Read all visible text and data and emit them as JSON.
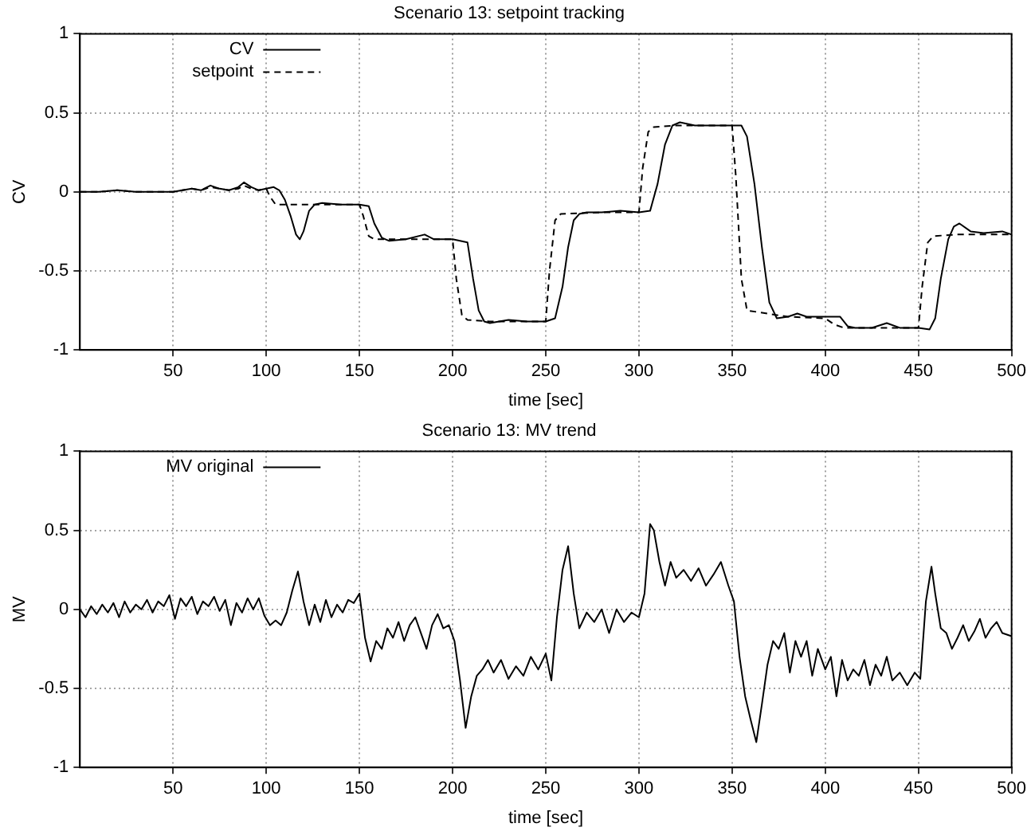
{
  "chart_data": [
    {
      "type": "line",
      "title": "Scenario 13: setpoint tracking",
      "xlabel": "time [sec]",
      "ylabel": "CV",
      "xlim": [
        0,
        500
      ],
      "xticks": [
        50,
        100,
        150,
        200,
        250,
        300,
        350,
        400,
        450,
        500
      ],
      "ylim": [
        -1,
        1
      ],
      "yticks": [
        -1,
        -0.5,
        0,
        0.5,
        1
      ],
      "grid": true,
      "legend": "top left",
      "series": [
        {
          "name": "CV",
          "color": "#000000",
          "line_style": "solid",
          "x": [
            0,
            10,
            20,
            30,
            40,
            50,
            55,
            60,
            65,
            70,
            75,
            80,
            85,
            88,
            92,
            96,
            100,
            104,
            107,
            110,
            113,
            116,
            118,
            120,
            123,
            126,
            130,
            140,
            150,
            155,
            158,
            162,
            166,
            175,
            185,
            190,
            200,
            208,
            211,
            214,
            217,
            220,
            230,
            240,
            250,
            255,
            259,
            262,
            265,
            268,
            272,
            280,
            290,
            300,
            306,
            310,
            314,
            318,
            322,
            330,
            340,
            350,
            355,
            358,
            362,
            366,
            370,
            374,
            380,
            385,
            390,
            400,
            408,
            412,
            416,
            425,
            433,
            440,
            450,
            456,
            459,
            462,
            466,
            469,
            472,
            478,
            485,
            495,
            500
          ],
          "values": [
            0,
            0,
            0.01,
            0,
            0,
            0,
            0.01,
            0.02,
            0.01,
            0.04,
            0.02,
            0.01,
            0.03,
            0.06,
            0.03,
            0.01,
            0.02,
            0.03,
            0.01,
            -0.05,
            -0.15,
            -0.27,
            -0.3,
            -0.25,
            -0.12,
            -0.08,
            -0.07,
            -0.08,
            -0.08,
            -0.09,
            -0.2,
            -0.29,
            -0.31,
            -0.3,
            -0.27,
            -0.3,
            -0.3,
            -0.32,
            -0.55,
            -0.75,
            -0.82,
            -0.83,
            -0.81,
            -0.82,
            -0.82,
            -0.8,
            -0.6,
            -0.35,
            -0.18,
            -0.14,
            -0.13,
            -0.13,
            -0.12,
            -0.13,
            -0.12,
            0.05,
            0.3,
            0.42,
            0.44,
            0.42,
            0.42,
            0.42,
            0.42,
            0.35,
            0.05,
            -0.35,
            -0.7,
            -0.8,
            -0.79,
            -0.77,
            -0.79,
            -0.79,
            -0.79,
            -0.85,
            -0.86,
            -0.86,
            -0.83,
            -0.86,
            -0.86,
            -0.87,
            -0.8,
            -0.55,
            -0.3,
            -0.22,
            -0.2,
            -0.25,
            -0.26,
            -0.25,
            -0.27
          ]
        },
        {
          "name": "setpoint",
          "color": "#000000",
          "line_style": "dashed",
          "x": [
            0,
            10,
            20,
            30,
            40,
            50,
            55,
            60,
            65,
            70,
            75,
            80,
            85,
            88,
            92,
            96,
            100,
            102,
            105,
            110,
            120,
            130,
            150,
            152,
            155,
            158,
            170,
            200,
            202,
            205,
            208,
            220,
            250,
            252,
            255,
            258,
            280,
            300,
            302,
            305,
            308,
            320,
            350,
            352,
            355,
            358,
            380,
            400,
            405,
            410,
            420,
            450,
            452,
            455,
            458,
            470,
            500
          ],
          "values": [
            0,
            0,
            0.01,
            0,
            0,
            0,
            0.01,
            0.02,
            0.01,
            0.03,
            0.02,
            0.01,
            0.02,
            0.04,
            0.02,
            0.01,
            0.02,
            -0.03,
            -0.08,
            -0.08,
            -0.08,
            -0.08,
            -0.08,
            -0.15,
            -0.28,
            -0.3,
            -0.3,
            -0.3,
            -0.55,
            -0.78,
            -0.81,
            -0.82,
            -0.82,
            -0.5,
            -0.18,
            -0.14,
            -0.13,
            -0.13,
            0.15,
            0.38,
            0.41,
            0.42,
            0.42,
            0.1,
            -0.55,
            -0.75,
            -0.79,
            -0.8,
            -0.84,
            -0.86,
            -0.86,
            -0.86,
            -0.6,
            -0.32,
            -0.28,
            -0.27,
            -0.27
          ]
        }
      ]
    },
    {
      "type": "line",
      "title": "Scenario 13: MV trend",
      "xlabel": "time [sec]",
      "ylabel": "MV",
      "xlim": [
        0,
        500
      ],
      "xticks": [
        50,
        100,
        150,
        200,
        250,
        300,
        350,
        400,
        450,
        500
      ],
      "ylim": [
        -1,
        1
      ],
      "yticks": [
        -1,
        -0.5,
        0,
        0.5,
        1
      ],
      "grid": true,
      "legend": "top left",
      "series": [
        {
          "name": "MV original",
          "color": "#000000",
          "line_style": "solid",
          "x": [
            0,
            3,
            6,
            9,
            12,
            15,
            18,
            21,
            24,
            27,
            30,
            33,
            36,
            39,
            42,
            45,
            48,
            51,
            54,
            57,
            60,
            63,
            66,
            69,
            72,
            75,
            78,
            81,
            84,
            87,
            90,
            93,
            96,
            99,
            102,
            105,
            108,
            111,
            114,
            117,
            120,
            123,
            126,
            129,
            132,
            135,
            138,
            141,
            144,
            147,
            150,
            153,
            156,
            159,
            162,
            165,
            168,
            171,
            174,
            177,
            180,
            183,
            186,
            189,
            192,
            195,
            198,
            201,
            204,
            207,
            210,
            213,
            216,
            219,
            222,
            226,
            230,
            234,
            238,
            242,
            246,
            250,
            253,
            256,
            259,
            262,
            265,
            268,
            272,
            276,
            280,
            284,
            288,
            292,
            296,
            300,
            303,
            306,
            308,
            311,
            314,
            317,
            320,
            324,
            328,
            332,
            336,
            340,
            344,
            348,
            351,
            354,
            357,
            360,
            363,
            366,
            369,
            372,
            375,
            378,
            381,
            384,
            387,
            390,
            393,
            396,
            400,
            403,
            406,
            409,
            412,
            415,
            418,
            421,
            424,
            427,
            430,
            433,
            436,
            440,
            444,
            448,
            451,
            454,
            457,
            459,
            462,
            465,
            468,
            471,
            474,
            477,
            480,
            483,
            486,
            489,
            492,
            495,
            500
          ],
          "values": [
            0,
            -0.05,
            0.02,
            -0.03,
            0.03,
            -0.02,
            0.04,
            -0.05,
            0.05,
            -0.02,
            0.03,
            0.0,
            0.06,
            -0.02,
            0.05,
            0.02,
            0.09,
            -0.06,
            0.07,
            0.02,
            0.08,
            -0.03,
            0.05,
            0.02,
            0.08,
            -0.01,
            0.06,
            -0.1,
            0.04,
            -0.02,
            0.07,
            0.0,
            0.07,
            -0.04,
            -0.1,
            -0.07,
            -0.1,
            -0.02,
            0.12,
            0.24,
            0.05,
            -0.1,
            0.03,
            -0.08,
            0.06,
            -0.05,
            0.03,
            -0.02,
            0.06,
            0.04,
            0.1,
            -0.18,
            -0.33,
            -0.2,
            -0.25,
            -0.12,
            -0.18,
            -0.08,
            -0.2,
            -0.1,
            -0.05,
            -0.15,
            -0.25,
            -0.1,
            -0.03,
            -0.12,
            -0.1,
            -0.2,
            -0.45,
            -0.75,
            -0.55,
            -0.42,
            -0.38,
            -0.32,
            -0.4,
            -0.32,
            -0.44,
            -0.36,
            -0.42,
            -0.3,
            -0.38,
            -0.28,
            -0.45,
            -0.05,
            0.25,
            0.4,
            0.1,
            -0.12,
            -0.02,
            -0.08,
            0.0,
            -0.15,
            0.0,
            -0.08,
            -0.02,
            -0.05,
            0.1,
            0.54,
            0.5,
            0.3,
            0.15,
            0.3,
            0.2,
            0.25,
            0.18,
            0.26,
            0.15,
            0.22,
            0.3,
            0.15,
            0.05,
            -0.3,
            -0.55,
            -0.7,
            -0.84,
            -0.6,
            -0.35,
            -0.2,
            -0.25,
            -0.15,
            -0.4,
            -0.2,
            -0.3,
            -0.2,
            -0.42,
            -0.25,
            -0.38,
            -0.3,
            -0.55,
            -0.32,
            -0.45,
            -0.38,
            -0.42,
            -0.32,
            -0.48,
            -0.35,
            -0.42,
            -0.3,
            -0.45,
            -0.4,
            -0.48,
            -0.4,
            -0.44,
            0.05,
            0.27,
            0.1,
            -0.12,
            -0.15,
            -0.25,
            -0.18,
            -0.1,
            -0.2,
            -0.14,
            -0.06,
            -0.18,
            -0.12,
            -0.08,
            -0.15,
            -0.17
          ]
        }
      ]
    }
  ]
}
